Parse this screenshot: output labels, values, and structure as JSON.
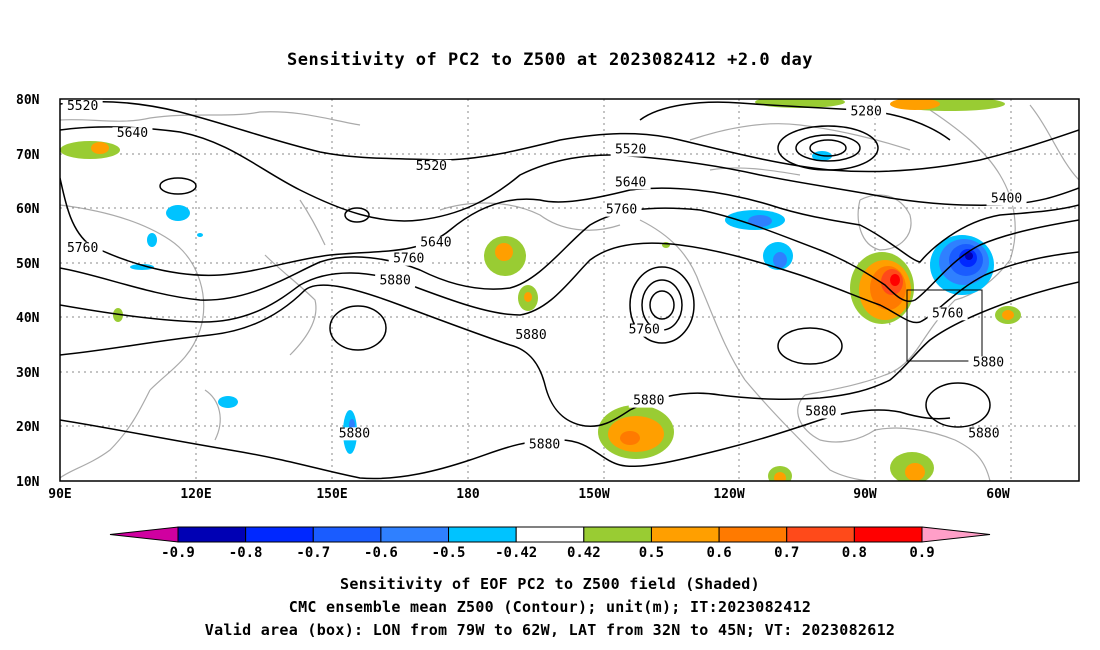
{
  "title": "Sensitivity of PC2 to Z500 at 2023082412 +2.0 day",
  "lat_ticks": [
    "80N",
    "70N",
    "60N",
    "50N",
    "40N",
    "30N",
    "20N",
    "10N"
  ],
  "lon_ticks": [
    "90E",
    "120E",
    "150E",
    "180",
    "150W",
    "120W",
    "90W",
    "60W"
  ],
  "contour_labels": [
    {
      "text": "5520",
      "lon": 95,
      "lat": 78
    },
    {
      "text": "5640",
      "lon": 106,
      "lat": 73
    },
    {
      "text": "5520",
      "lon": 172,
      "lat": 67
    },
    {
      "text": "5760",
      "lon": 95,
      "lat": 52
    },
    {
      "text": "5640",
      "lon": 173,
      "lat": 53
    },
    {
      "text": "5760",
      "lon": 167,
      "lat": 50
    },
    {
      "text": "5880",
      "lon": 164,
      "lat": 46
    },
    {
      "text": "5520",
      "lon": -144,
      "lat": 70
    },
    {
      "text": "5640",
      "lon": -144,
      "lat": 64
    },
    {
      "text": "5760",
      "lon": -146,
      "lat": 59
    },
    {
      "text": "5280",
      "lon": -92,
      "lat": 77
    },
    {
      "text": "5400",
      "lon": -61,
      "lat": 61
    },
    {
      "text": "5760",
      "lon": -141,
      "lat": 37
    },
    {
      "text": "5880",
      "lon": -166,
      "lat": 36
    },
    {
      "text": "5760",
      "lon": -74,
      "lat": 40
    },
    {
      "text": "5880",
      "lon": -65,
      "lat": 31
    },
    {
      "text": "5880",
      "lon": -140,
      "lat": 24
    },
    {
      "text": "5880",
      "lon": -102,
      "lat": 22
    },
    {
      "text": "5880",
      "lon": 155,
      "lat": 18
    },
    {
      "text": "5880",
      "lon": -163,
      "lat": 16
    },
    {
      "text": "5880",
      "lon": -66,
      "lat": 18
    }
  ],
  "colorbar": {
    "labels": [
      "-0.9",
      "-0.8",
      "-0.7",
      "-0.6",
      "-0.5",
      "-0.42",
      "0.42",
      "0.5",
      "0.6",
      "0.7",
      "0.8",
      "0.9"
    ],
    "colors": [
      "#0000b4",
      "#0028ff",
      "#1a5cff",
      "#2f80ff",
      "#00c3ff",
      "#ffffff",
      "#99cc33",
      "#ff9f00",
      "#ff7a00",
      "#ff4a1a",
      "#ff0000"
    ],
    "low_color": "#d000a0",
    "high_color": "#ff9fc8"
  },
  "captions": [
    "Sensitivity of EOF PC2 to Z500 field (Shaded)",
    "CMC ensemble mean Z500 (Contour); unit(m); IT:2023082412",
    "Valid area (box): LON from 79W to 62W, LAT from 32N to 45N; VT: 2023082612"
  ],
  "valid_box": {
    "lon_min": -79,
    "lon_max": -62,
    "lat_min": 32,
    "lat_max": 45
  },
  "map_extent": {
    "lon_min": 90,
    "lon_max": 315,
    "lat_min": 10,
    "lat_max": 80
  },
  "colors": {
    "contour": "#000000",
    "coast": "#aaaaaa",
    "grid": "#888888"
  }
}
